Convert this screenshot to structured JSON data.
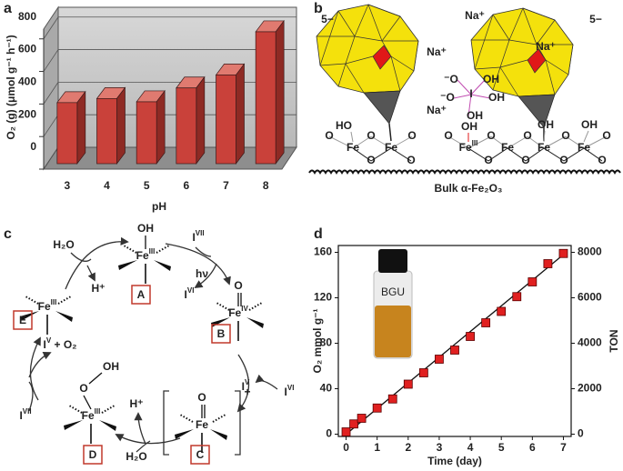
{
  "chart_data": [
    {
      "type": "bar",
      "three_d": true,
      "panel_label": "a",
      "categories": [
        "3",
        "4",
        "5",
        "6",
        "7",
        "8"
      ],
      "values": [
        375,
        400,
        380,
        465,
        545,
        810
      ],
      "color": "#c9413a",
      "ylim": [
        0,
        860
      ],
      "yticks": [
        0,
        200,
        400,
        600,
        800
      ],
      "grid": true,
      "xlabel": "pH",
      "ylabel": "O₂ (g) (μmol g⁻¹ h⁻¹)"
    },
    {
      "type": "scatter",
      "panel_label": "d",
      "x": [
        0,
        0.25,
        0.5,
        1,
        1.5,
        2,
        2.5,
        3,
        3.5,
        4,
        4.5,
        5,
        5.5,
        6,
        6.5,
        7
      ],
      "series": [
        {
          "color": "#e02020",
          "values": [
            2,
            9,
            14,
            23,
            31,
            44,
            54,
            66,
            74,
            86,
            98,
            108,
            121,
            134,
            150,
            159
          ]
        }
      ],
      "fit": {
        "x": [
          0,
          7
        ],
        "values": [
          0,
          158
        ]
      },
      "xlim": [
        -0.25,
        7.25
      ],
      "ylim": [
        -2,
        166
      ],
      "y2lim": [
        -100,
        8300
      ],
      "xticks": [
        0,
        1,
        2,
        3,
        4,
        5,
        6,
        7
      ],
      "yticks": [
        0,
        40,
        80,
        120,
        160
      ],
      "y2ticks": [
        0,
        2000,
        4000,
        6000,
        8000
      ],
      "xlabel": "Time (day)",
      "ylabel": "O₂ mmol g⁻¹",
      "y2label": "TON",
      "inset_text": "BGU"
    }
  ],
  "panel_b": {
    "label": "b",
    "charges": [
      "5−",
      "5−"
    ],
    "counterions": [
      "Na⁺",
      "Na⁺",
      "Na⁺",
      "Na⁺"
    ],
    "periodate": {
      "center": "I",
      "ligands": [
        "⁻O",
        "⁻O",
        "OH",
        "OH",
        "OH"
      ]
    },
    "iron": [
      {
        "base": "Fe"
      },
      {
        "base": "Fe"
      },
      {
        "base": "Fe",
        "sup": "III"
      },
      {
        "base": "Fe"
      },
      {
        "base": "Fe"
      },
      {
        "base": "Fe"
      }
    ],
    "hydroxyls": [
      "HO",
      "OH",
      "OH",
      "OH"
    ],
    "oxygens": [
      "O",
      "O",
      "O",
      "O",
      "O",
      "O",
      "O",
      "O",
      "O",
      "O",
      "O",
      "O",
      "O",
      "O"
    ],
    "support": "Bulk α-Fe₂O₃"
  },
  "panel_c": {
    "label": "c",
    "species": [
      {
        "box": "A",
        "metal": {
          "base": "Fe",
          "sup": "III"
        },
        "ligand": "OH"
      },
      {
        "box": "B",
        "metal": {
          "base": "Fe",
          "sup": "IV"
        },
        "ligand": "O"
      },
      {
        "box": "C",
        "metal": {
          "base": "Fe"
        },
        "ligand": "O",
        "charge": "+"
      },
      {
        "box": "D",
        "metal": {
          "base": "Fe",
          "sup": "III"
        },
        "ligand": "O",
        "ligand2": "OH"
      },
      {
        "box": "E",
        "metal": {
          "base": "Fe",
          "sup": "III"
        }
      }
    ],
    "reagents": [
      {
        "base": "H₂O"
      },
      {
        "base": "H⁺"
      },
      {
        "base": "I",
        "sup": "VII"
      },
      {
        "base": "hν"
      },
      {
        "base": "I",
        "sup": "VI"
      },
      {
        "base": "I",
        "sup": "VI"
      },
      {
        "base": "I",
        "sup": "V"
      },
      {
        "base": "H⁺"
      },
      {
        "base": "H₂O"
      },
      {
        "base": "I",
        "sup": "VII"
      },
      {
        "base": "I",
        "sup": "V",
        "rest": " + O₂"
      }
    ]
  }
}
